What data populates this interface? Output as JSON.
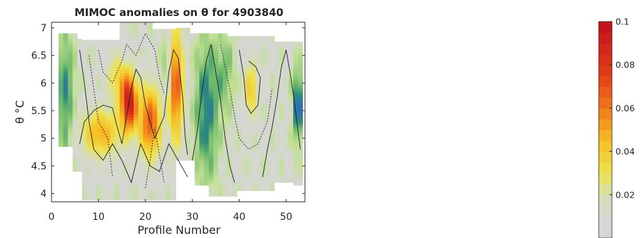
{
  "chart_data": [
    {
      "type": "heatmap",
      "title": "MIMOC anomalies on θ  for 4903840",
      "xlabel": "Profile Number",
      "ylabel": "θ °C",
      "xlim": [
        0,
        54
      ],
      "ylim": [
        3.85,
        7.1
      ],
      "xticks": [
        0,
        10,
        20,
        30,
        40,
        50
      ],
      "xtick_labels": [
        "0",
        "10",
        "20",
        "30",
        "40",
        "50"
      ],
      "yticks": [
        4,
        4.5,
        5,
        5.5,
        6,
        6.5,
        7
      ],
      "ytick_labels": [
        "4",
        "4.5",
        "5",
        "5.5",
        "6",
        "6.5",
        "7"
      ],
      "grid": false,
      "colormap": "green-blue below ~0.01, grey near ~0.01, yellow-orange-red up to 0.1",
      "contours": "black solid and dotted contour lines overlaid"
    },
    {
      "type": "colorbar",
      "range": [
        0,
        0.1
      ],
      "ticks": [
        0.02,
        0.04,
        0.06,
        0.08,
        0.1
      ],
      "tick_labels": [
        "0.02",
        "0.04",
        "0.06",
        "0.08",
        "0.1"
      ],
      "colors": [
        "#d4d4d4",
        "#dce6b0",
        "#f0e24a",
        "#f6c225",
        "#f5a21e",
        "#f2781a",
        "#ea4a1a",
        "#d42320",
        "#c00f1b"
      ]
    }
  ],
  "figure": {
    "title": "MIMOC anomalies on θ  for 4903840",
    "xlabel": "Profile Number",
    "ylabel": "θ °C"
  }
}
